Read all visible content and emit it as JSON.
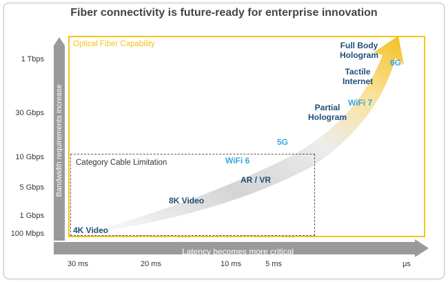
{
  "title": "Fiber connectivity is future-ready for enterprise innovation",
  "axes": {
    "y_title": "Bandwidth requirements increase",
    "x_title": "Latency becomes more critical",
    "y_ticks": [
      "1 Tbps",
      "30 Gbps",
      "10 Gbps",
      "5 Gbps",
      "1 Gbps",
      "100 Mbps"
    ],
    "x_ticks": [
      "30 ms",
      "20 ms",
      "10 ms",
      "5 ms",
      "µs"
    ]
  },
  "regions": {
    "fiber": "Optical Fiber Capability",
    "cable": "Category Cable Limitation"
  },
  "applications": {
    "video_4k": "4K Video",
    "video_8k": "8K Video",
    "ar_vr": "AR / VR",
    "partial_hologram": [
      "Partial",
      "Hologram"
    ],
    "tactile_internet": [
      "Tactile",
      "Internet"
    ],
    "full_body_hologram": [
      "Full Body",
      "Hologram"
    ]
  },
  "wireless": {
    "wifi6": "WiFi 6",
    "g5": "5G",
    "wifi7": "WiFi 7",
    "g6": "6G"
  },
  "colors": {
    "fiber": "#f2c31a",
    "application": "#1f4e79",
    "wireless": "#3aa6dd",
    "axis_bar": "#9a9a9a"
  }
}
